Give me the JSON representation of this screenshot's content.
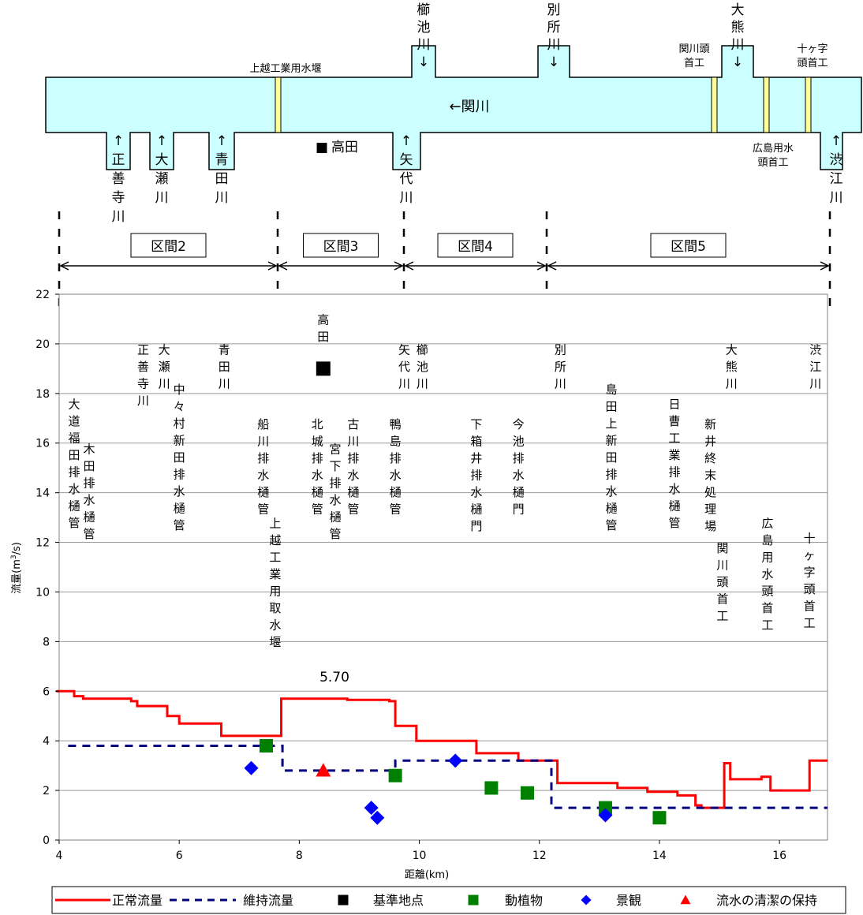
{
  "schematic": {
    "river_name": "←関川",
    "weir_label": "上越工業用水堰",
    "station_marker": "■",
    "station_name": "高田",
    "tributaries_top": [
      {
        "name": "櫛池川",
        "chars": [
          "櫛",
          "池",
          "川",
          "↓"
        ]
      },
      {
        "name": "別所川",
        "chars": [
          "別",
          "所",
          "川",
          "↓"
        ]
      },
      {
        "name": "大熊川",
        "chars": [
          "大",
          "熊",
          "川",
          "↓"
        ]
      }
    ],
    "tributaries_bottom": [
      {
        "name": "正善寺川",
        "chars": [
          "↑",
          "正",
          "善",
          "寺",
          "川"
        ]
      },
      {
        "name": "大瀬川",
        "chars": [
          "↑",
          "大",
          "瀬",
          "川"
        ]
      },
      {
        "name": "青田川",
        "chars": [
          "↑",
          "青",
          "田",
          "川"
        ]
      },
      {
        "name": "矢代川",
        "chars": [
          "↑",
          "矢",
          "代",
          "川"
        ]
      },
      {
        "name": "渋江川",
        "chars": [
          "↑",
          "渋",
          "江",
          "川"
        ]
      }
    ],
    "headworks": [
      {
        "name": "関川頭首工",
        "lines": [
          "関川頭",
          "首工"
        ]
      },
      {
        "name": "十ヶ字頭首工",
        "lines": [
          "十ヶ字",
          "頭首工"
        ]
      },
      {
        "name": "広島用水頭首工",
        "lines": [
          "広島用水",
          "頭首工"
        ]
      }
    ]
  },
  "sections": [
    "区間2",
    "区間3",
    "区間4",
    "区間5"
  ],
  "chart_data": {
    "type": "line",
    "xlabel": "距離(km)",
    "ylabel": "流量(m³/s)",
    "xlim": [
      4,
      16.8
    ],
    "ylim": [
      0,
      22
    ],
    "xticks": [
      "4",
      "6",
      "8",
      "10",
      "12",
      "14",
      "16"
    ],
    "yticks": [
      "0",
      "2",
      "4",
      "6",
      "8",
      "10",
      "12",
      "14",
      "16",
      "18",
      "20",
      "22"
    ],
    "grid": "horizontal",
    "legend_position": "bottom",
    "max_flow_annotation": "5.70",
    "series": [
      {
        "name": "正常流量",
        "color": "#ff0000",
        "style": "step",
        "x": [
          3.95,
          4.25,
          4.25,
          4.4,
          4.4,
          5.2,
          5.2,
          5.3,
          5.3,
          5.8,
          5.8,
          6.0,
          6.0,
          6.7,
          6.7,
          7.7,
          7.7,
          8.8,
          8.8,
          9.5,
          9.5,
          9.6,
          9.6,
          9.95,
          9.95,
          10.95,
          10.95,
          11.65,
          11.65,
          12.3,
          12.3,
          13.3,
          13.3,
          13.8,
          13.8,
          14.3,
          14.3,
          14.6,
          14.6,
          14.7,
          14.7,
          14.9,
          14.9,
          15.08,
          15.08,
          15.18,
          15.18,
          15.7,
          15.7,
          15.85,
          15.85,
          16.5,
          16.5,
          16.8
        ],
        "y": [
          6.0,
          6.0,
          5.8,
          5.8,
          5.7,
          5.7,
          5.6,
          5.6,
          5.4,
          5.4,
          5.0,
          5.0,
          4.7,
          4.7,
          4.2,
          4.2,
          5.7,
          5.7,
          5.65,
          5.65,
          5.6,
          5.6,
          4.6,
          4.6,
          4.0,
          4.0,
          3.5,
          3.5,
          3.2,
          3.2,
          2.3,
          2.3,
          2.1,
          2.1,
          1.95,
          1.95,
          1.8,
          1.8,
          1.4,
          1.4,
          1.3,
          1.3,
          1.3,
          1.3,
          3.1,
          3.1,
          2.45,
          2.45,
          2.55,
          2.55,
          2.0,
          2.0,
          3.2,
          3.2
        ]
      },
      {
        "name": "維持流量",
        "color": "#000080",
        "style": "dashed-step",
        "x": [
          4.15,
          7.72,
          7.72,
          9.6,
          9.6,
          12.2,
          12.2,
          16.8
        ],
        "y": [
          3.8,
          3.8,
          2.8,
          2.8,
          3.2,
          3.2,
          1.3,
          1.3
        ]
      },
      {
        "name": "基準地点",
        "color": "#000000",
        "marker": "square",
        "points": [
          {
            "x": 8.4,
            "y": 19.0
          }
        ]
      },
      {
        "name": "動植物",
        "color": "#008000",
        "marker": "square",
        "points": [
          {
            "x": 7.45,
            "y": 3.8
          },
          {
            "x": 9.6,
            "y": 2.6
          },
          {
            "x": 11.2,
            "y": 2.1
          },
          {
            "x": 11.8,
            "y": 1.9
          },
          {
            "x": 13.1,
            "y": 1.3
          },
          {
            "x": 14.0,
            "y": 0.9
          }
        ]
      },
      {
        "name": "景観",
        "color": "#0000ff",
        "marker": "diamond",
        "points": [
          {
            "x": 7.2,
            "y": 2.9
          },
          {
            "x": 9.2,
            "y": 1.3
          },
          {
            "x": 9.3,
            "y": 0.9
          },
          {
            "x": 10.6,
            "y": 3.2
          },
          {
            "x": 13.1,
            "y": 1.0
          }
        ]
      },
      {
        "name": "流水の清潔の保持",
        "color": "#ff0000",
        "marker": "triangle",
        "points": [
          {
            "x": 8.4,
            "y": 2.8
          }
        ]
      }
    ],
    "annotations": [
      {
        "text": "高田",
        "x": 8.4,
        "y": 20.8
      },
      {
        "text": "正善寺川",
        "x": 5.4,
        "y": 19.6
      },
      {
        "text": "大瀬川",
        "x": 5.75,
        "y": 19.6
      },
      {
        "text": "青田川",
        "x": 6.75,
        "y": 19.6
      },
      {
        "text": "矢代川",
        "x": 9.75,
        "y": 19.6
      },
      {
        "text": "櫛池川",
        "x": 10.05,
        "y": 19.6
      },
      {
        "text": "別所川",
        "x": 12.35,
        "y": 19.6
      },
      {
        "text": "大熊川",
        "x": 15.2,
        "y": 19.6
      },
      {
        "text": "渋江川",
        "x": 16.6,
        "y": 19.6
      },
      {
        "text": "中々村新田排水樋管",
        "x": 6.0,
        "y": 18.0
      },
      {
        "text": "島田上新田排水樋管",
        "x": 13.2,
        "y": 18.0
      },
      {
        "text": "大道福田排水樋管",
        "x": 4.25,
        "y": 17.4
      },
      {
        "text": "日曹工業排水樋管",
        "x": 14.25,
        "y": 17.4
      },
      {
        "text": "木田排水樋管",
        "x": 4.5,
        "y": 15.6
      },
      {
        "text": "船川排水樋管",
        "x": 7.4,
        "y": 16.6
      },
      {
        "text": "北城排水樋管",
        "x": 8.3,
        "y": 16.6
      },
      {
        "text": "古川排水樋管",
        "x": 8.9,
        "y": 16.6
      },
      {
        "text": "宮下排水樋管",
        "x": 8.6,
        "y": 15.6
      },
      {
        "text": "鴨島排水樋管",
        "x": 9.6,
        "y": 16.6
      },
      {
        "text": "新井終末処理場",
        "x": 14.85,
        "y": 16.6
      },
      {
        "text": "下箱井排水樋門",
        "x": 10.95,
        "y": 16.6
      },
      {
        "text": "今池排水樋門",
        "x": 11.65,
        "y": 16.6
      },
      {
        "text": "上越工業用取水堰",
        "x": 7.6,
        "y": 12.6
      },
      {
        "text": "広島用水頭首工",
        "x": 15.8,
        "y": 12.6
      },
      {
        "text": "十ヶ字頭首工",
        "x": 16.5,
        "y": 12.0
      },
      {
        "text": "関川頭首工",
        "x": 15.05,
        "y": 11.6
      }
    ]
  }
}
